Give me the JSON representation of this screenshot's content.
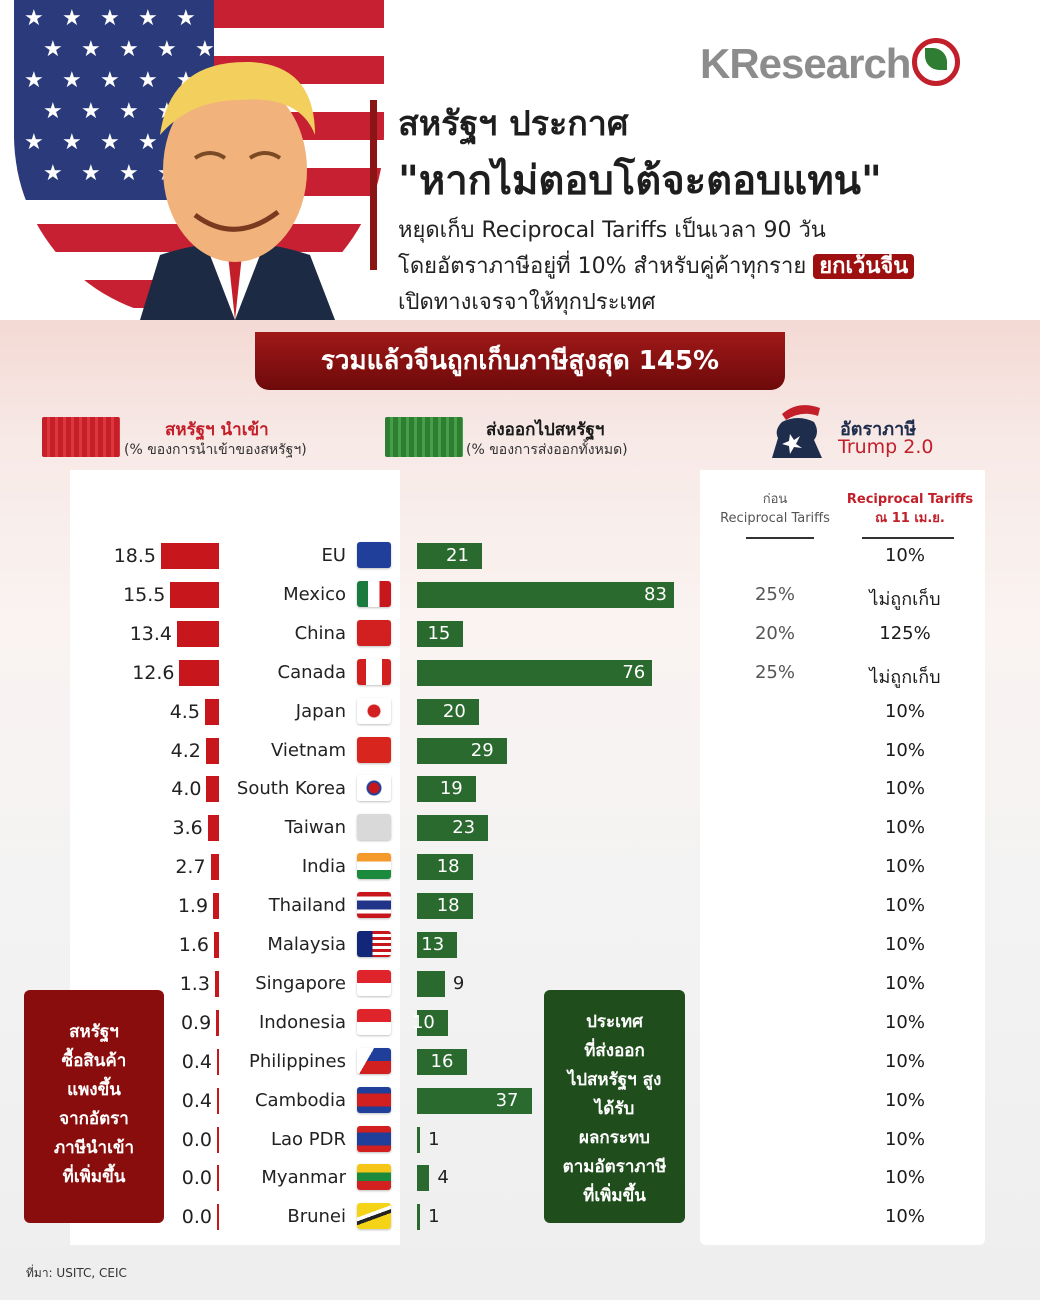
{
  "brand": "KResearch",
  "headline": {
    "line1": "สหรัฐฯ ประกาศ",
    "line2": "\"หากไม่ตอบโต้จะตอบแทน\"",
    "sub1": "หยุดเก็บ Reciprocal Tariffs เป็นเวลา 90 วัน",
    "sub2_prefix": "โดยอัตราภาษีอยู่ที่ 10% สำหรับคู่ค้าทุกราย ",
    "sub2_highlight": "ยกเว้นจีน",
    "sub3": "เปิดทางเจรจาให้ทุกประเทศ"
  },
  "banner": "รวมแล้วจีนถูกเก็บภาษีสูงสุด 145%",
  "legend": {
    "imports_title": "สหรัฐฯ นำเข้า",
    "imports_sub": "(% ของการนำเข้าของสหรัฐฯ)",
    "exports_title": "ส่งออกไปสหรัฐฯ",
    "exports_sub": "(% ของการส่งออกทั้งหมด)",
    "tariff_title": "อัตราภาษี",
    "tariff_sub": "Trump 2.0"
  },
  "columns": {
    "before_l1": "ก่อน",
    "before_l2": "Reciprocal Tariffs",
    "after_l1": "Reciprocal Tariffs",
    "after_l2": "ณ 11 เม.ย."
  },
  "colors": {
    "imports": "#c8161d",
    "exports": "#2a6a2e",
    "accent": "#8b1414"
  },
  "chart_data": {
    "type": "bar",
    "categories": [
      "EU",
      "Mexico",
      "China",
      "Canada",
      "Japan",
      "Vietnam",
      "South Korea",
      "Taiwan",
      "India",
      "Thailand",
      "Malaysia",
      "Singapore",
      "Indonesia",
      "Philippines",
      "Cambodia",
      "Lao PDR",
      "Myanmar",
      "Brunei"
    ],
    "series": [
      {
        "name": "สหรัฐฯ นำเข้า",
        "values": [
          18.5,
          15.5,
          13.4,
          12.6,
          4.5,
          4.2,
          4.0,
          3.6,
          2.7,
          1.9,
          1.6,
          1.3,
          0.9,
          0.4,
          0.4,
          0.0,
          0.0,
          0.0
        ],
        "labels": [
          "18.5",
          "15.5",
          "13.4",
          "12.6",
          "4.5",
          "4.2",
          "4.0",
          "3.6",
          "2.7",
          "1.9",
          "1.6",
          "1.3",
          "0.9",
          "0.4",
          "0.4",
          "0.0",
          "0.0",
          "0.0"
        ]
      },
      {
        "name": "ส่งออกไปสหรัฐฯ",
        "values": [
          21,
          83,
          15,
          76,
          20,
          29,
          19,
          23,
          18,
          18,
          13,
          9,
          10,
          16,
          37,
          1,
          4,
          1
        ]
      }
    ],
    "tariffs_before": [
      "",
      "25%",
      "20%",
      "25%",
      "",
      "",
      "",
      "",
      "",
      "",
      "",
      "",
      "",
      "",
      "",
      "",
      "",
      ""
    ],
    "tariffs_after": [
      "10%",
      "ไม่ถูกเก็บ",
      "125%",
      "ไม่ถูกเก็บ",
      "10%",
      "10%",
      "10%",
      "10%",
      "10%",
      "10%",
      "10%",
      "10%",
      "10%",
      "10%",
      "10%",
      "10%",
      "10%",
      "10%"
    ],
    "flag_icons": [
      "eu-flag",
      "mexico-flag",
      "china-flag",
      "canada-flag",
      "japan-flag",
      "vietnam-flag",
      "south-korea-flag",
      "taiwan-flag",
      "india-flag",
      "thailand-flag",
      "malaysia-flag",
      "singapore-flag",
      "indonesia-flag",
      "philippines-flag",
      "cambodia-flag",
      "laos-flag",
      "myanmar-flag",
      "brunei-flag"
    ]
  },
  "notes": {
    "red": [
      "สหรัฐฯ",
      "ซื้อสินค้า",
      "แพงขึ้น",
      "จากอัตรา",
      "ภาษีนำเข้า",
      "ที่เพิ่มขึ้น"
    ],
    "green": [
      "ประเทศ",
      "ที่ส่งออก",
      "ไปสหรัฐฯ สูง",
      "ได้รับ",
      "ผลกระทบ",
      "ตามอัตราภาษี",
      "ที่เพิ่มขึ้น"
    ]
  },
  "source": "ที่มา: USITC, CEIC"
}
